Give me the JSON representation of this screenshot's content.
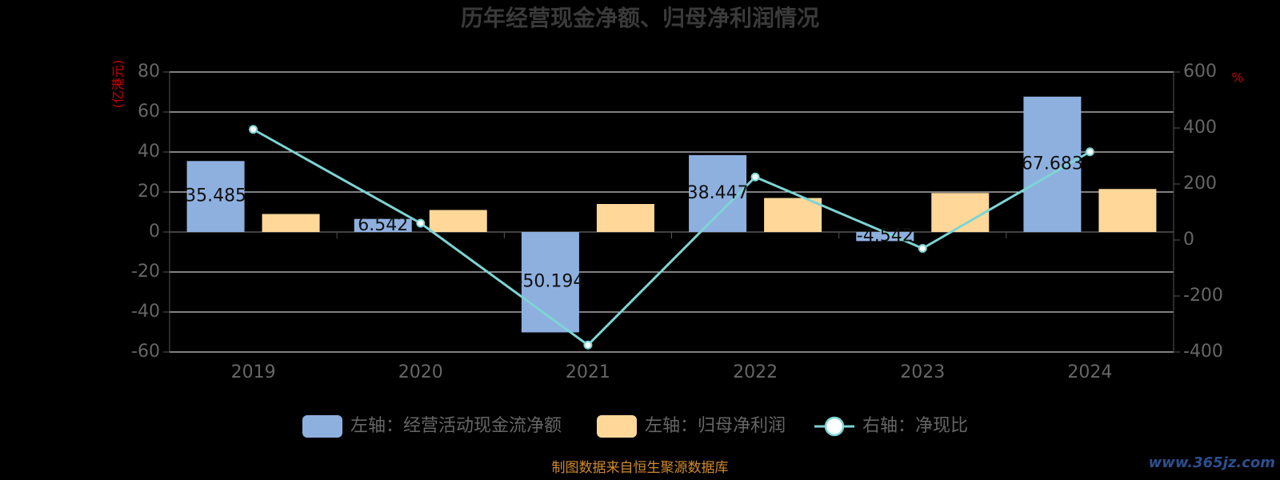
{
  "colors": {
    "title": "#3a3a3a",
    "axis_text": "#666666",
    "unit_text": "#cc0000",
    "grid": "#ffffff",
    "axis_line": "#555555",
    "bar_cash": "#8eb0df",
    "bar_profit": "#ffd899",
    "line": "#7dd4d4",
    "line_marker_fill": "#ffffff",
    "label_text": "#111111",
    "source": "#d08a2e",
    "watermark": "#2c4f8f"
  },
  "chart_data": {
    "type": "bar",
    "title": "历年经营现金净额、归母净利润情况",
    "categories": [
      "2019",
      "2020",
      "2021",
      "2022",
      "2023",
      "2024"
    ],
    "left_axis": {
      "label": "(亿港元)",
      "ylim": [
        -60,
        80
      ],
      "ticks": [
        "80",
        "60",
        "40",
        "20",
        "0",
        "-20",
        "-40",
        "-60"
      ]
    },
    "right_axis": {
      "label": "%",
      "ylim": [
        -400,
        600
      ],
      "ticks": [
        "600",
        "400",
        "200",
        "0",
        "-200",
        "-400"
      ]
    },
    "grid": true,
    "legend_position": "bottom-center",
    "series": [
      {
        "name": "左轴：经营活动现金流净额",
        "type": "bar",
        "axis": "left",
        "values": [
          35.485,
          6.542,
          -50.194,
          38.447,
          -4.542,
          67.683
        ],
        "labels": [
          "35.485",
          "6.542",
          "-50.194",
          "38.447",
          "-4.542",
          "67.683"
        ]
      },
      {
        "name": "左轴：归母净利润",
        "type": "bar",
        "axis": "left",
        "values": [
          9,
          11,
          14,
          17,
          19.5,
          21.5
        ]
      },
      {
        "name": "右轴：净现比",
        "type": "line",
        "axis": "right",
        "values": [
          395,
          60,
          -375,
          225,
          -30,
          315
        ]
      }
    ]
  },
  "footer": {
    "source": "制图数据来自恒生聚源数据库",
    "watermark": "www.365jz.com"
  }
}
